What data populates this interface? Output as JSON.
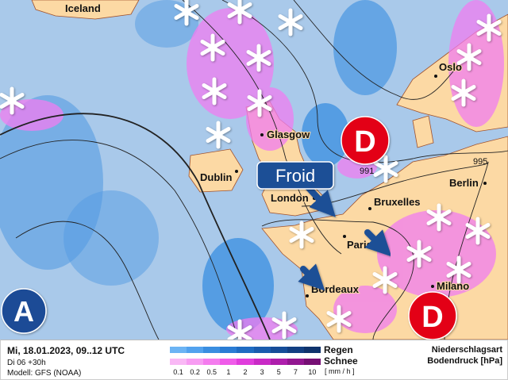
{
  "map": {
    "cities": [
      "Iceland",
      "Glasgow",
      "Dublin",
      "London",
      "Bruxelles",
      "Berlin",
      "Paris",
      "Bordeaux",
      "Milano",
      "Oslo"
    ],
    "isobar_labels": [
      "991",
      "995"
    ],
    "pressure_systems": {
      "low": "D",
      "high": "A"
    },
    "callout": "Froid",
    "colors": {
      "ocean": "#a9c9ea",
      "land": "#fcd9a4",
      "rain": "#3a8ee0",
      "snow": "#f07cf0",
      "low": "#e30613",
      "high": "#1e4c96",
      "callout": "#1f4f96"
    }
  },
  "legend": {
    "date": "Mi, 18.01.2023, 09..12 UTC",
    "run": "Di 06 +30h",
    "model": "Modell: GFS (NOAA)",
    "rain_label": "Regen",
    "snow_label": "Schnee",
    "ticks": [
      "0.1",
      "0.2",
      "0.5",
      "1",
      "2",
      "3",
      "5",
      "7",
      "10"
    ],
    "unit": "[ mm / h ]",
    "title1": "Niederschlagsart",
    "title2": "Bodendruck [hPa]",
    "rain_colors": [
      "#6cb4f4",
      "#52a2ee",
      "#3a8ee0",
      "#2a7cd4",
      "#1f6cc2",
      "#1a5cae",
      "#164d98",
      "#123f82",
      "#0f336c"
    ],
    "snow_colors": [
      "#f9b8f5",
      "#f79cf2",
      "#f47cee",
      "#ef5ce9",
      "#e03ddc",
      "#c92ac6",
      "#ae1eac",
      "#921690",
      "#760f74"
    ]
  }
}
